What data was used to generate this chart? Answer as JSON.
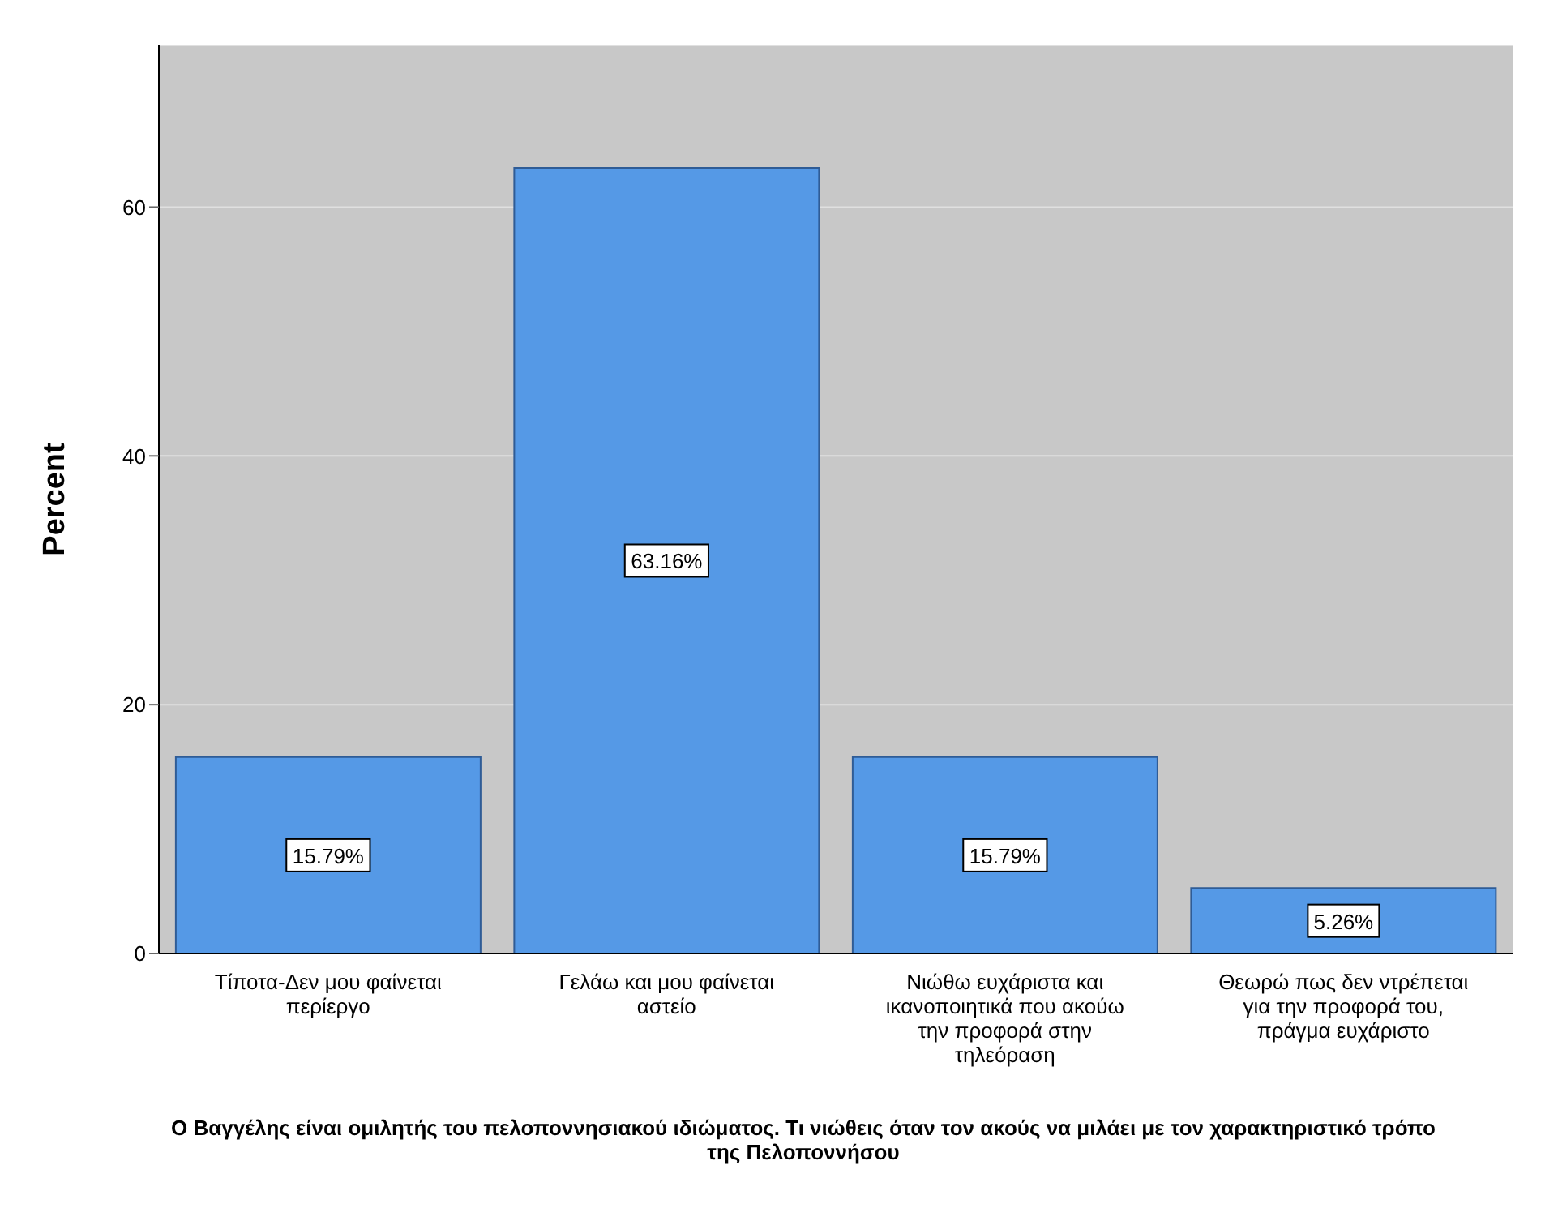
{
  "chart_data": {
    "type": "bar",
    "xlabel": "Ο Βαγγέλης είναι ομιλητής του πελοποννησιακού ιδιώματος. Τι νιώθεις όταν τον ακούς να μιλάει με τον χαρακτηριστικό τρόπο της Πελοποννήσου",
    "ylabel": "Percent",
    "categories": [
      "Τίποτα-Δεν μου φαίνεται περίεργο",
      "Γελάω και μου φαίνεται αστείο",
      "Νιώθω ευχάριστα και ικανοποιητικά που ακούω την προφορά στην τηλεόραση",
      "Θεωρώ πως δεν ντρέπεται για την προφορά του, πράγμα ευχάριστο"
    ],
    "values": [
      15.79,
      63.16,
      15.79,
      5.26
    ],
    "value_labels": [
      "15.79%",
      "63.16%",
      "15.79%",
      "5.26%"
    ],
    "color": "#5599e6",
    "ylim": [
      0,
      73
    ],
    "yticks": [
      0,
      20,
      40,
      60
    ],
    "grid": "y"
  }
}
